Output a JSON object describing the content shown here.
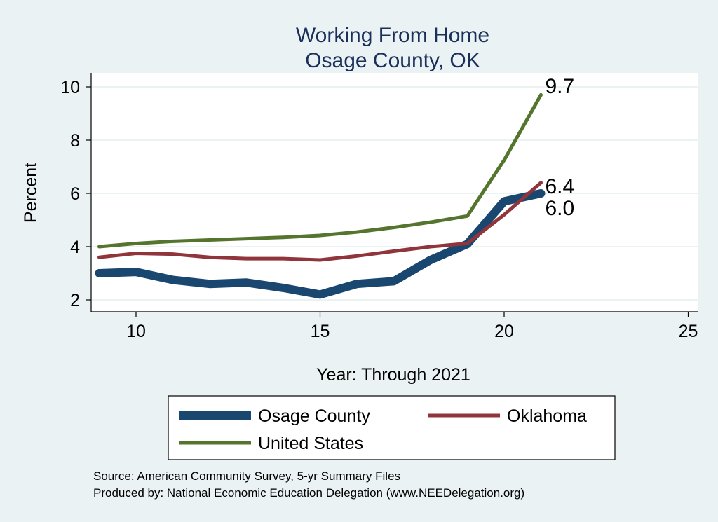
{
  "chart_data": {
    "type": "line",
    "title": "Working From Home",
    "subtitle": "Osage County, OK",
    "xlabel": "Year: Through 2021",
    "ylabel": "Percent",
    "xlim": [
      8.8,
      25.3
    ],
    "ylim": [
      1.6,
      10.5
    ],
    "xticks": [
      10,
      15,
      20,
      25
    ],
    "yticks": [
      2,
      4,
      6,
      8,
      10
    ],
    "grid": true,
    "legend_position": "bottom",
    "x": [
      9,
      10,
      11,
      12,
      13,
      14,
      15,
      16,
      17,
      18,
      19,
      20,
      21
    ],
    "series": [
      {
        "name": "Osage County",
        "color": "#1a476f",
        "values": [
          3.0,
          3.05,
          2.75,
          2.6,
          2.65,
          2.45,
          2.2,
          2.6,
          2.7,
          3.5,
          4.1,
          5.7,
          6.0
        ],
        "end_label": "6.0"
      },
      {
        "name": "Oklahoma",
        "color": "#90353b",
        "values": [
          3.6,
          3.75,
          3.72,
          3.6,
          3.55,
          3.55,
          3.5,
          3.65,
          3.83,
          4.0,
          4.12,
          5.2,
          6.4
        ],
        "end_label": "6.4"
      },
      {
        "name": "United States",
        "color": "#55752f",
        "values": [
          4.0,
          4.12,
          4.2,
          4.25,
          4.3,
          4.35,
          4.42,
          4.55,
          4.72,
          4.92,
          5.15,
          7.25,
          9.7
        ],
        "end_label": "9.7"
      }
    ]
  },
  "notes": {
    "source": "Source: American Community Survey, 5-yr Summary Files",
    "produced": "Produced by: National Economic Education Delegation (www.NEEDelegation.org)"
  }
}
